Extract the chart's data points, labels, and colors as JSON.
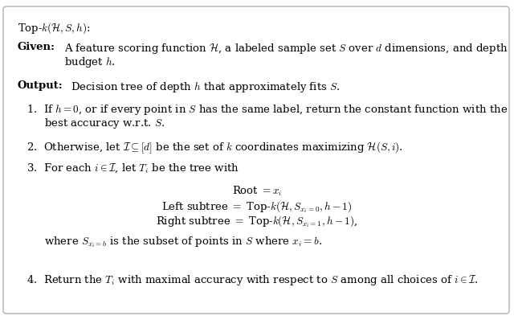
{
  "background_color": "#ffffff",
  "border_color": "#b0b0b0",
  "text_color": "#000000",
  "figsize": [
    6.4,
    3.98
  ],
  "dpi": 100,
  "fs": 9.5
}
